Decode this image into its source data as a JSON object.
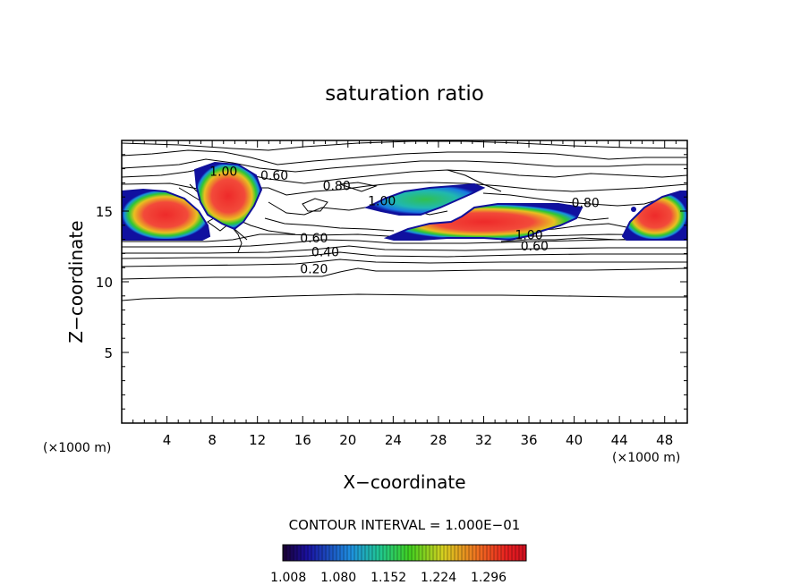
{
  "chart_data": {
    "type": "contour",
    "title": "saturation ratio",
    "xlabel": "X−coordinate",
    "ylabel": "Z−coordinate",
    "x_unit_left": "(×1000 m)",
    "x_unit_right": "(×1000 m)",
    "xlim": [
      0,
      50
    ],
    "ylim": [
      0,
      20
    ],
    "x_ticks": [
      4,
      8,
      12,
      16,
      20,
      24,
      28,
      32,
      36,
      40,
      44,
      48
    ],
    "y_ticks": [
      5,
      10,
      15
    ],
    "contour_interval_text": "CONTOUR INTERVAL = 1.000E−01",
    "colorbar_ticks": [
      "1.008",
      "1.080",
      "1.152",
      "1.224",
      "1.296"
    ],
    "colorbar_range": [
      1.0,
      1.35
    ],
    "contour_labels": [
      {
        "text": "1.00",
        "x": 9.0,
        "y": 17.5
      },
      {
        "text": "0.60",
        "x": 13.5,
        "y": 17.2
      },
      {
        "text": "0.80",
        "x": 19.0,
        "y": 16.5
      },
      {
        "text": "1.00",
        "x": 23.0,
        "y": 15.4
      },
      {
        "text": "0.80",
        "x": 41.0,
        "y": 15.3
      },
      {
        "text": "0.60",
        "x": 17.0,
        "y": 12.8
      },
      {
        "text": "0.40",
        "x": 18.0,
        "y": 11.8
      },
      {
        "text": "0.20",
        "x": 17.0,
        "y": 10.6
      },
      {
        "text": "1.00",
        "x": 36.0,
        "y": 13.0
      },
      {
        "text": "0.60",
        "x": 36.5,
        "y": 12.2
      }
    ],
    "supersaturated_regions": [
      {
        "x": [
          0,
          7.5
        ],
        "z": [
          13.0,
          16.3
        ],
        "peak": 1.33
      },
      {
        "x": [
          6.5,
          11.5
        ],
        "z": [
          13.7,
          18.0
        ],
        "peak": 1.32
      },
      {
        "x": [
          23,
          31
        ],
        "z": [
          14.8,
          16.8
        ],
        "peak": 1.12
      },
      {
        "x": [
          24,
          41
        ],
        "z": [
          13.2,
          15.3
        ],
        "peak": 1.3
      },
      {
        "x": [
          45,
          50
        ],
        "z": [
          13.0,
          16.2
        ],
        "peak": 1.33
      }
    ],
    "grid": false,
    "legend": "colorbar-bottom"
  }
}
